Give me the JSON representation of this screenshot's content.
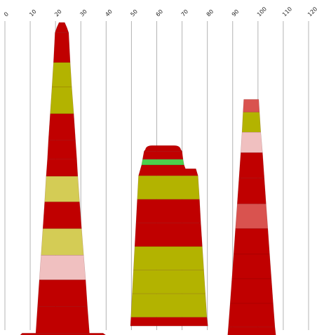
{
  "chart_data": {
    "type": "area",
    "orientation": "vertical-stacked-profiles",
    "x_axis": {
      "ticks": [
        0,
        10,
        20,
        30,
        40,
        50,
        60,
        70,
        80,
        90,
        100,
        110,
        120
      ],
      "xlim": [
        0,
        120
      ],
      "grid": true,
      "tick_position": "top",
      "tick_rotation": -45
    },
    "title": "",
    "xlabel": "",
    "ylabel": "",
    "legend": "none",
    "shapes": [
      {
        "id": "left",
        "segments": [
          {
            "top": 0.0,
            "height": 1.0,
            "x_left": [
              20.5,
              19.8
            ],
            "x_right": [
              24.5,
              25.2
            ],
            "top_notch": true,
            "color": "#c00000"
          },
          {
            "top": 1.0,
            "height": 2.9,
            "x_left": [
              19.8,
              19.2
            ],
            "x_right": [
              25.2,
              25.8
            ],
            "color": "#c00000"
          },
          {
            "top": 3.9,
            "height": 2.4,
            "x_left": [
              19.2,
              18.6
            ],
            "x_right": [
              25.8,
              26.4
            ],
            "color": "#b3b300"
          },
          {
            "top": 6.3,
            "height": 2.6,
            "x_left": [
              18.6,
              17.9
            ],
            "x_right": [
              26.4,
              27.2
            ],
            "color": "#b3b300"
          },
          {
            "top": 8.9,
            "height": 2.6,
            "x_left": [
              17.9,
              17.2
            ],
            "x_right": [
              27.2,
              27.9
            ],
            "color": "#c00000"
          },
          {
            "top": 11.5,
            "height": 1.8,
            "x_left": [
              17.2,
              16.8
            ],
            "x_right": [
              27.9,
              28.4
            ],
            "color": "#c00000"
          },
          {
            "top": 13.3,
            "height": 1.7,
            "x_left": [
              16.8,
              16.3
            ],
            "x_right": [
              28.4,
              28.8
            ],
            "color": "#c00000"
          },
          {
            "top": 15.0,
            "height": 2.5,
            "x_left": [
              16.3,
              15.7
            ],
            "x_right": [
              28.8,
              29.5
            ],
            "color": "#d4cc55"
          },
          {
            "top": 17.5,
            "height": 2.6,
            "x_left": [
              15.7,
              15.0
            ],
            "x_right": [
              29.5,
              30.3
            ],
            "color": "#c00000"
          },
          {
            "top": 20.1,
            "height": 2.6,
            "x_left": [
              15.0,
              14.3
            ],
            "x_right": [
              30.3,
              31.1
            ],
            "color": "#d4cc55"
          },
          {
            "top": 22.7,
            "height": 2.4,
            "x_left": [
              14.3,
              13.6
            ],
            "x_right": [
              31.1,
              31.9
            ],
            "color": "#f0c0c0"
          },
          {
            "top": 25.1,
            "height": 2.6,
            "x_left": [
              13.6,
              12.9
            ],
            "x_right": [
              31.9,
              32.6
            ],
            "color": "#c00000"
          },
          {
            "top": 27.7,
            "height": 2.6,
            "x_left": [
              12.9,
              12.2
            ],
            "x_right": [
              32.6,
              33.4
            ],
            "color": "#c00000"
          },
          {
            "top": 30.3,
            "height": 0.25,
            "x_left": [
              6.8,
              5.8
            ],
            "x_right": [
              38.8,
              40.2
            ],
            "color": "#c00000"
          },
          {
            "top": 30.55,
            "height": 0.35,
            "x_left": [
              5.8,
              5.8
            ],
            "x_right": [
              40.2,
              40.2
            ],
            "color": "#b3b300"
          }
        ]
      },
      {
        "id": "middle",
        "segments": [
          {
            "top": 12.0,
            "height": 0.55,
            "x_left": [
              55.5,
              55.0
            ],
            "x_right": [
              69.5,
              70.0
            ],
            "rounded_top": true,
            "color": "#c00000"
          },
          {
            "top": 12.55,
            "height": 0.8,
            "x_left": [
              55.0,
              54.4
            ],
            "x_right": [
              70.0,
              70.4
            ],
            "color": "#c00000"
          },
          {
            "top": 13.35,
            "height": 0.55,
            "x_left": [
              54.4,
              54.0
            ],
            "x_right": [
              70.4,
              70.8
            ],
            "color": "#4cd04c"
          },
          {
            "top": 13.9,
            "height": 1.05,
            "x_left": [
              54.0,
              52.8
            ],
            "x_right": [
              70.8,
              76.3
            ],
            "right_notch": true,
            "color": "#c00000"
          },
          {
            "top": 14.95,
            "height": 2.3,
            "x_left": [
              52.8,
              52.3
            ],
            "x_right": [
              76.3,
              76.9
            ],
            "color": "#b3b300"
          },
          {
            "top": 17.25,
            "height": 2.3,
            "x_left": [
              52.3,
              51.8
            ],
            "x_right": [
              76.9,
              77.4
            ],
            "color": "#c00000"
          },
          {
            "top": 19.55,
            "height": 2.3,
            "x_left": [
              51.8,
              51.3
            ],
            "x_right": [
              77.4,
              78.0
            ],
            "color": "#c00000"
          },
          {
            "top": 21.85,
            "height": 2.3,
            "x_left": [
              51.3,
              50.8
            ],
            "x_right": [
              78.0,
              78.6
            ],
            "color": "#b3b300"
          },
          {
            "top": 24.15,
            "height": 2.3,
            "x_left": [
              50.8,
              50.3
            ],
            "x_right": [
              78.6,
              79.2
            ],
            "color": "#b3b300"
          },
          {
            "top": 26.45,
            "height": 2.3,
            "x_left": [
              50.3,
              49.8
            ],
            "x_right": [
              79.2,
              79.8
            ],
            "color": "#b3b300"
          },
          {
            "top": 28.75,
            "height": 0.85,
            "x_left": [
              49.8,
              49.6
            ],
            "x_right": [
              79.8,
              80.2
            ],
            "color": "#c00000"
          }
        ]
      },
      {
        "id": "right",
        "segments": [
          {
            "top": 7.5,
            "height": 1.25,
            "x_left": [
              94.4,
              94.1
            ],
            "x_right": [
              100.3,
              100.6
            ],
            "color": "#d9534f"
          },
          {
            "top": 8.75,
            "height": 1.95,
            "x_left": [
              94.1,
              93.7
            ],
            "x_right": [
              100.6,
              101.1
            ],
            "color": "#b3b300"
          },
          {
            "top": 10.7,
            "height": 2.0,
            "x_left": [
              93.7,
              93.2
            ],
            "x_right": [
              101.1,
              101.8
            ],
            "color": "#f0c0c0"
          },
          {
            "top": 12.7,
            "height": 2.5,
            "x_left": [
              93.2,
              92.5
            ],
            "x_right": [
              101.8,
              102.5
            ],
            "color": "#c00000"
          },
          {
            "top": 15.2,
            "height": 2.5,
            "x_left": [
              92.5,
              91.8
            ],
            "x_right": [
              102.5,
              103.2
            ],
            "color": "#c00000"
          },
          {
            "top": 17.7,
            "height": 2.4,
            "x_left": [
              91.8,
              91.1
            ],
            "x_right": [
              103.2,
              103.9
            ],
            "color": "#d9534f"
          },
          {
            "top": 20.1,
            "height": 2.5,
            "x_left": [
              91.1,
              90.4
            ],
            "x_right": [
              103.9,
              104.6
            ],
            "color": "#c00000"
          },
          {
            "top": 22.6,
            "height": 2.4,
            "x_left": [
              90.4,
              89.7
            ],
            "x_right": [
              104.6,
              105.3
            ],
            "color": "#c00000"
          },
          {
            "top": 25.0,
            "height": 2.4,
            "x_left": [
              89.7,
              89.0
            ],
            "x_right": [
              105.3,
              106.0
            ],
            "color": "#c00000"
          },
          {
            "top": 27.4,
            "height": 2.3,
            "x_left": [
              89.0,
              88.3
            ],
            "x_right": [
              106.0,
              106.7
            ],
            "color": "#c00000"
          },
          {
            "top": 29.7,
            "height": 0.9,
            "x_left": [
              88.3,
              88.0
            ],
            "x_right": [
              106.7,
              107.1
            ],
            "color": "#c00000"
          }
        ]
      }
    ]
  }
}
